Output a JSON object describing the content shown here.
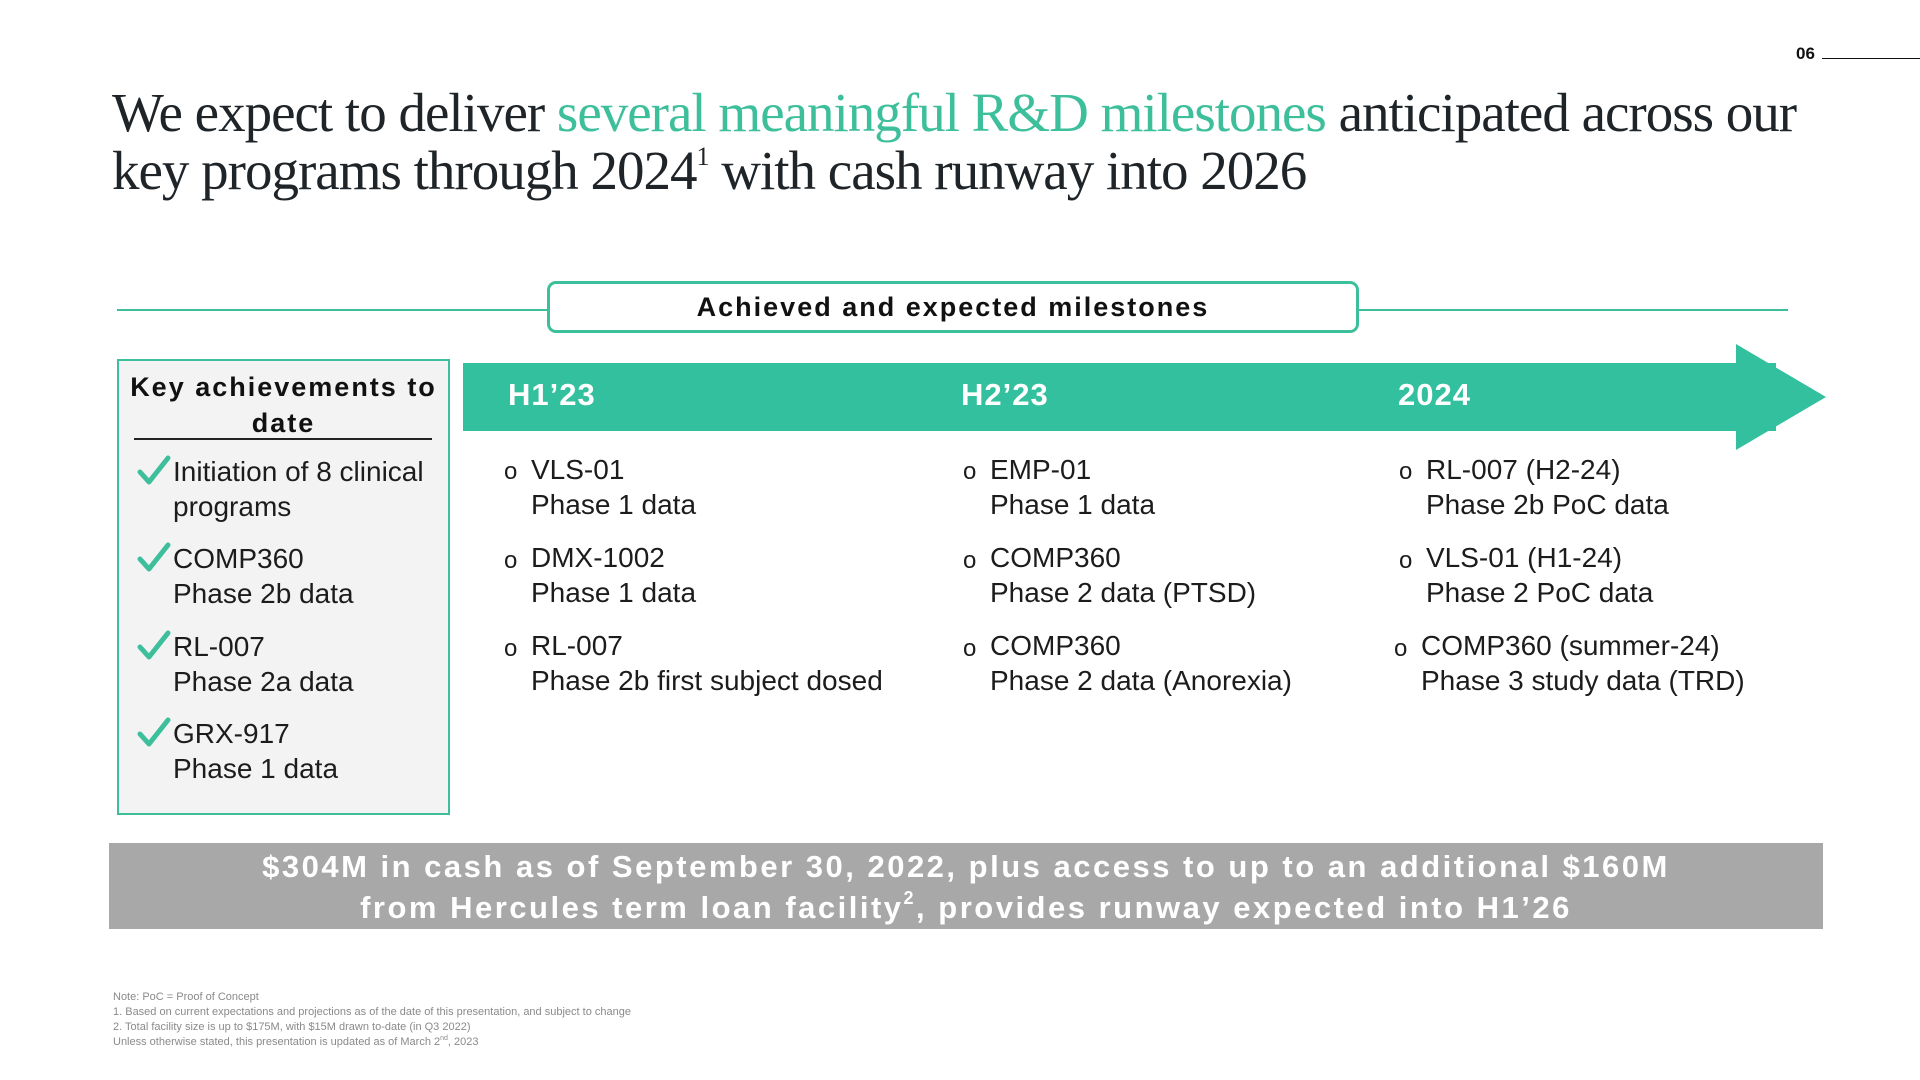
{
  "page_number": "06",
  "title": {
    "part1": "We expect to deliver ",
    "accent": "several meaningful R&D milestones",
    "part2": " anticipated across our key programs through 2024",
    "sup": "1",
    "part3": " with cash runway ",
    "part4": "into 2026"
  },
  "section_header": "Achieved and expected milestones",
  "achievements": {
    "title": "Key achievements to date",
    "items": [
      {
        "line1": "Initiation of 8 clinical",
        "line2": "programs"
      },
      {
        "line1": "COMP360",
        "line2": "Phase 2b data"
      },
      {
        "line1": "RL-007",
        "line2": "Phase 2a data"
      },
      {
        "line1": "GRX-917",
        "line2": "Phase 1 data"
      }
    ]
  },
  "timeline": {
    "bullet": "o",
    "periods": [
      {
        "label": "H1’23",
        "milestones": [
          {
            "line1": "VLS-01",
            "line2": "Phase 1 data"
          },
          {
            "line1": "DMX-1002",
            "line2": "Phase 1 data"
          },
          {
            "line1": "RL-007",
            "line2": "Phase 2b first subject dosed"
          }
        ]
      },
      {
        "label": "H2’23",
        "milestones": [
          {
            "line1": "EMP-01",
            "line2": "Phase 1 data"
          },
          {
            "line1": "COMP360",
            "line2": "Phase 2 data (PTSD)"
          },
          {
            "line1": "COMP360",
            "line2": "Phase 2 data (Anorexia)"
          }
        ]
      },
      {
        "label": "2024",
        "milestones": [
          {
            "line1": "RL-007 (H2-24)",
            "line2": "Phase 2b PoC data"
          },
          {
            "line1": "VLS-01 (H1-24)",
            "line2": "Phase 2 PoC data"
          },
          {
            "line1": "COMP360 (summer-24)",
            "line2": "Phase 3 study data (TRD)"
          }
        ]
      }
    ]
  },
  "cash_banner": {
    "line1": "$304M in cash as of September 30, 2022, plus access to up to an additional $160M",
    "line2a": "from Hercules term loan facility",
    "line2_sup": "2",
    "line2b": ", provides runway expected into H1’26"
  },
  "footnotes": {
    "note": "Note: PoC = Proof of Concept",
    "fn1": "1.     Based on current expectations and projections as of the date of this presentation, and subject to change",
    "fn2": "2.     Total facility size is up to $175M, with $15M drawn to-date (in Q3 2022)",
    "fn3a": "Unless otherwise stated, this presentation is updated as of March 2",
    "fn3_sup": "nd",
    "fn3b": ", 2023"
  },
  "colors": {
    "accent": "#3ebf9b",
    "arrow": "#33c09e",
    "banner": "#a8a8a8",
    "achievement_box": "#f3f3f3"
  },
  "icons": {
    "check": "check-icon",
    "arrow": "timeline-arrow"
  }
}
